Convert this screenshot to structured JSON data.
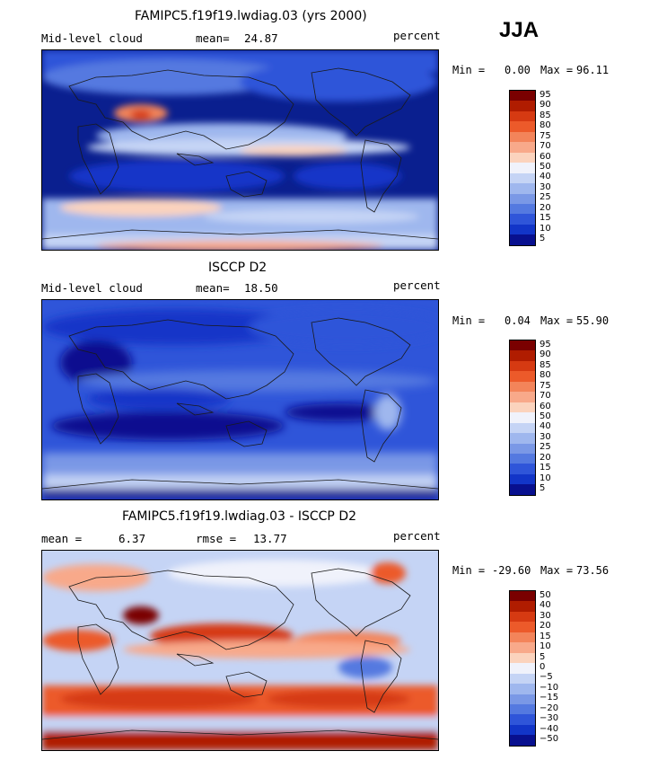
{
  "season": "JJA",
  "panels": [
    {
      "title": "FAMIPC5.f19f19.lwdiag.03 (yrs 2000)",
      "left_label": "Mid-level cloud",
      "stat_label": "mean=",
      "stat_value": "24.87",
      "stat2_label": "",
      "stat2_value": "",
      "units": "percent",
      "min_label": "Min =",
      "min_value": "0.00",
      "max_label": "Max =",
      "max_value": "96.11",
      "colorbar_labels": [
        "95",
        "90",
        "85",
        "80",
        "75",
        "70",
        "60",
        "50",
        "40",
        "30",
        "25",
        "20",
        "15",
        "10",
        "5"
      ]
    },
    {
      "title": "ISCCP D2",
      "left_label": "Mid-level cloud",
      "stat_label": "mean=",
      "stat_value": "18.50",
      "stat2_label": "",
      "stat2_value": "",
      "units": "percent",
      "min_label": "Min =",
      "min_value": "0.04",
      "max_label": "Max =",
      "max_value": "55.90",
      "colorbar_labels": [
        "95",
        "90",
        "85",
        "80",
        "75",
        "70",
        "60",
        "50",
        "40",
        "30",
        "25",
        "20",
        "15",
        "10",
        "5"
      ]
    },
    {
      "title": "FAMIPC5.f19f19.lwdiag.03 - ISCCP D2",
      "left_label": "mean =",
      "stat_label": "",
      "stat_value": "6.37",
      "stat2_label": "rmse =",
      "stat2_value": "13.77",
      "units": "percent",
      "min_label": "Min =",
      "min_value": "-29.60",
      "max_label": "Max =",
      "max_value": "73.56",
      "colorbar_labels": [
        "50",
        "40",
        "30",
        "20",
        "15",
        "10",
        "5",
        "0",
        "−5",
        "−10",
        "−15",
        "−20",
        "−30",
        "−40",
        "−50"
      ]
    }
  ],
  "colors": {
    "colorbar_scale": [
      "#7a0000",
      "#b01c00",
      "#d63a12",
      "#ec5a2a",
      "#f3845a",
      "#f8a98a",
      "#fbd3bd",
      "#f0f2fb",
      "#c5d4f5",
      "#9fb7ee",
      "#7a98e6",
      "#5479e0",
      "#2f55d9",
      "#1235c8",
      "#08108f"
    ],
    "coastline": "#1a1a1a"
  }
}
